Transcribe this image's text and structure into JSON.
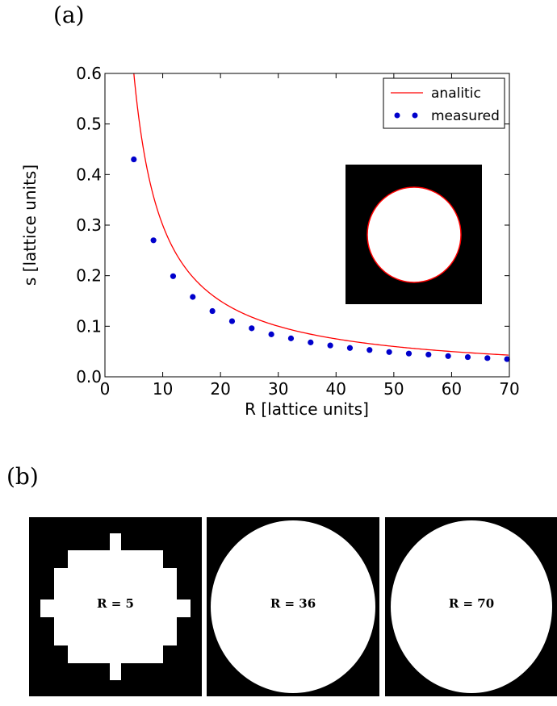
{
  "panel_labels": {
    "a": "(a)",
    "b": "(b)"
  },
  "chart_data": {
    "type": "scatter",
    "xlabel": "R [lattice units]",
    "ylabel": "s [lattice units]",
    "xlim": [
      0,
      70
    ],
    "ylim": [
      0.0,
      0.6
    ],
    "x_ticks": [
      0,
      10,
      20,
      30,
      40,
      50,
      60,
      70
    ],
    "y_ticks": [
      "0.0",
      "0.1",
      "0.2",
      "0.3",
      "0.4",
      "0.5",
      "0.6"
    ],
    "grid": false,
    "legend_position": "top-right",
    "series": [
      {
        "name": "analitic",
        "kind": "line",
        "color": "#ff0000",
        "formula": "s = 3/R"
      },
      {
        "name": "measured",
        "kind": "scatter",
        "color": "#0000cc",
        "x": [
          5,
          8.4,
          11.8,
          15.2,
          18.6,
          22,
          25.4,
          28.8,
          32.2,
          35.6,
          39,
          42.4,
          45.8,
          49.2,
          52.6,
          56,
          59.4,
          62.8,
          66.2,
          69.6
        ],
        "y": [
          0.43,
          0.27,
          0.199,
          0.158,
          0.13,
          0.11,
          0.096,
          0.084,
          0.076,
          0.068,
          0.062,
          0.057,
          0.053,
          0.049,
          0.046,
          0.044,
          0.041,
          0.039,
          0.037,
          0.035
        ]
      }
    ],
    "inset": {
      "description_icon": "circle-inset-image",
      "background": "#000000",
      "fill": "#ffffff",
      "edge": "#ff0000"
    }
  },
  "thumbnails": [
    {
      "label": "R = 5"
    },
    {
      "label": "R = 36"
    },
    {
      "label": "R = 70"
    }
  ]
}
